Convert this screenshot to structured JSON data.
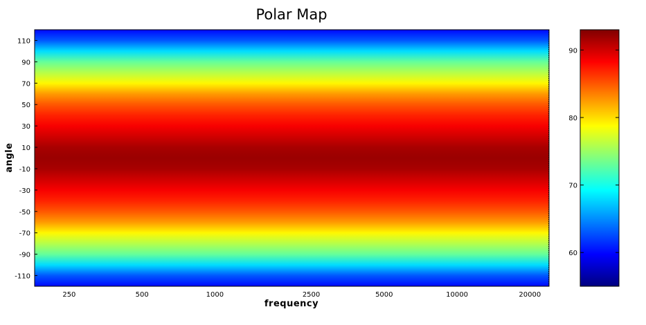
{
  "chart_data": {
    "type": "heatmap",
    "title": "Polar Map",
    "xlabel": "frequency",
    "ylabel": "angle",
    "x_scale": "log",
    "x_ticks": [
      "250",
      "500",
      "1000",
      "2500",
      "5000",
      "10000",
      "20000"
    ],
    "y_ticks": [
      "110",
      "90",
      "70",
      "50",
      "30",
      "10",
      "-10",
      "-30",
      "-50",
      "-70",
      "-90",
      "-110"
    ],
    "xlim": [
      180,
      24000
    ],
    "ylim": [
      -120,
      120
    ],
    "colorbar": {
      "colormap": "jet",
      "range": [
        55,
        93
      ],
      "ticks": [
        "60",
        "70",
        "80",
        "90"
      ]
    },
    "value_profile": {
      "description": "value depends on angle only; constant across frequency",
      "angles": [
        -120,
        -110,
        -100,
        -90,
        -80,
        -70,
        -60,
        -50,
        -40,
        -30,
        -20,
        -10,
        0,
        10,
        20,
        30,
        40,
        50,
        60,
        70,
        80,
        90,
        100,
        110,
        120
      ],
      "values": [
        60,
        63,
        68,
        73,
        76,
        79,
        82.5,
        85,
        87,
        88.5,
        90,
        91.5,
        92,
        91.5,
        90,
        88.5,
        87,
        85,
        82.5,
        79,
        76,
        73,
        68,
        63,
        60
      ]
    }
  }
}
